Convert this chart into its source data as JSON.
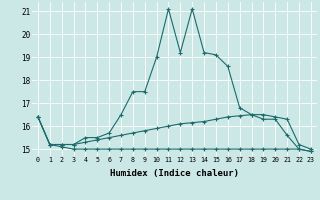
{
  "xlabel": "Humidex (Indice chaleur)",
  "x": [
    0,
    1,
    2,
    3,
    4,
    5,
    6,
    7,
    8,
    9,
    10,
    11,
    12,
    13,
    14,
    15,
    16,
    17,
    18,
    19,
    20,
    21,
    22,
    23
  ],
  "line_flat": [
    16.4,
    15.2,
    15.1,
    15.0,
    15.0,
    15.0,
    15.0,
    15.0,
    15.0,
    15.0,
    15.0,
    15.0,
    15.0,
    15.0,
    15.0,
    15.0,
    15.0,
    15.0,
    15.0,
    15.0,
    15.0,
    15.0,
    15.0,
    14.9
  ],
  "line_rise": [
    16.4,
    15.2,
    15.2,
    15.2,
    15.3,
    15.4,
    15.5,
    15.6,
    15.7,
    15.8,
    15.9,
    16.0,
    16.1,
    16.15,
    16.2,
    16.3,
    16.4,
    16.45,
    16.5,
    16.5,
    16.4,
    16.3,
    15.2,
    15.0
  ],
  "line_peak": [
    16.4,
    15.2,
    15.2,
    15.2,
    15.5,
    15.5,
    15.7,
    16.5,
    17.5,
    17.5,
    19.0,
    21.1,
    19.2,
    21.1,
    19.2,
    19.1,
    18.6,
    16.8,
    16.5,
    16.3,
    16.3,
    15.6,
    15.0,
    14.9
  ],
  "bg_color": "#cce8e6",
  "line_color": "#1a6b6b",
  "grid_color": "#ffffff",
  "ylim": [
    14.7,
    21.4
  ],
  "xlim": [
    -0.5,
    23.5
  ],
  "yticks": [
    15,
    16,
    17,
    18,
    19,
    20,
    21
  ],
  "xticks": [
    0,
    1,
    2,
    3,
    4,
    5,
    6,
    7,
    8,
    9,
    10,
    11,
    12,
    13,
    14,
    15,
    16,
    17,
    18,
    19,
    20,
    21,
    22,
    23
  ]
}
